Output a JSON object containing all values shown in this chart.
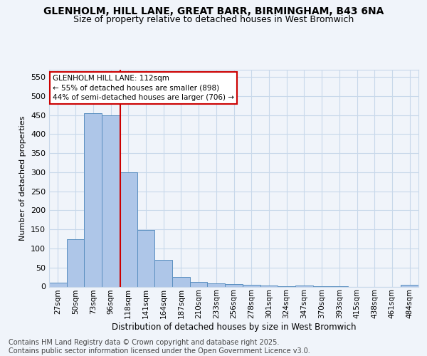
{
  "title_line1": "GLENHOLM, HILL LANE, GREAT BARR, BIRMINGHAM, B43 6NA",
  "title_line2": "Size of property relative to detached houses in West Bromwich",
  "xlabel": "Distribution of detached houses by size in West Bromwich",
  "ylabel": "Number of detached properties",
  "categories": [
    "27sqm",
    "50sqm",
    "73sqm",
    "96sqm",
    "118sqm",
    "141sqm",
    "164sqm",
    "187sqm",
    "210sqm",
    "233sqm",
    "256sqm",
    "278sqm",
    "301sqm",
    "324sqm",
    "347sqm",
    "370sqm",
    "393sqm",
    "415sqm",
    "438sqm",
    "461sqm",
    "484sqm"
  ],
  "values": [
    10,
    125,
    455,
    450,
    300,
    148,
    70,
    25,
    12,
    8,
    6,
    4,
    3,
    1,
    2,
    1,
    1,
    0,
    0,
    0,
    4
  ],
  "bar_color": "#aec6e8",
  "bar_edge_color": "#5a8fc0",
  "background_color": "#f0f4fa",
  "grid_color": "#c8d8ea",
  "vline_x": 3.55,
  "vline_color": "#cc0000",
  "annotation_title": "GLENHOLM HILL LANE: 112sqm",
  "annotation_line1": "← 55% of detached houses are smaller (898)",
  "annotation_line2": "44% of semi-detached houses are larger (706) →",
  "annotation_box_color": "#ffffff",
  "annotation_box_edge": "#cc0000",
  "ylim": [
    0,
    570
  ],
  "yticks": [
    0,
    50,
    100,
    150,
    200,
    250,
    300,
    350,
    400,
    450,
    500,
    550
  ],
  "footnote": "Contains HM Land Registry data © Crown copyright and database right 2025.\nContains public sector information licensed under the Open Government Licence v3.0.",
  "title_fontsize": 10,
  "subtitle_fontsize": 9,
  "footnote_fontsize": 7
}
